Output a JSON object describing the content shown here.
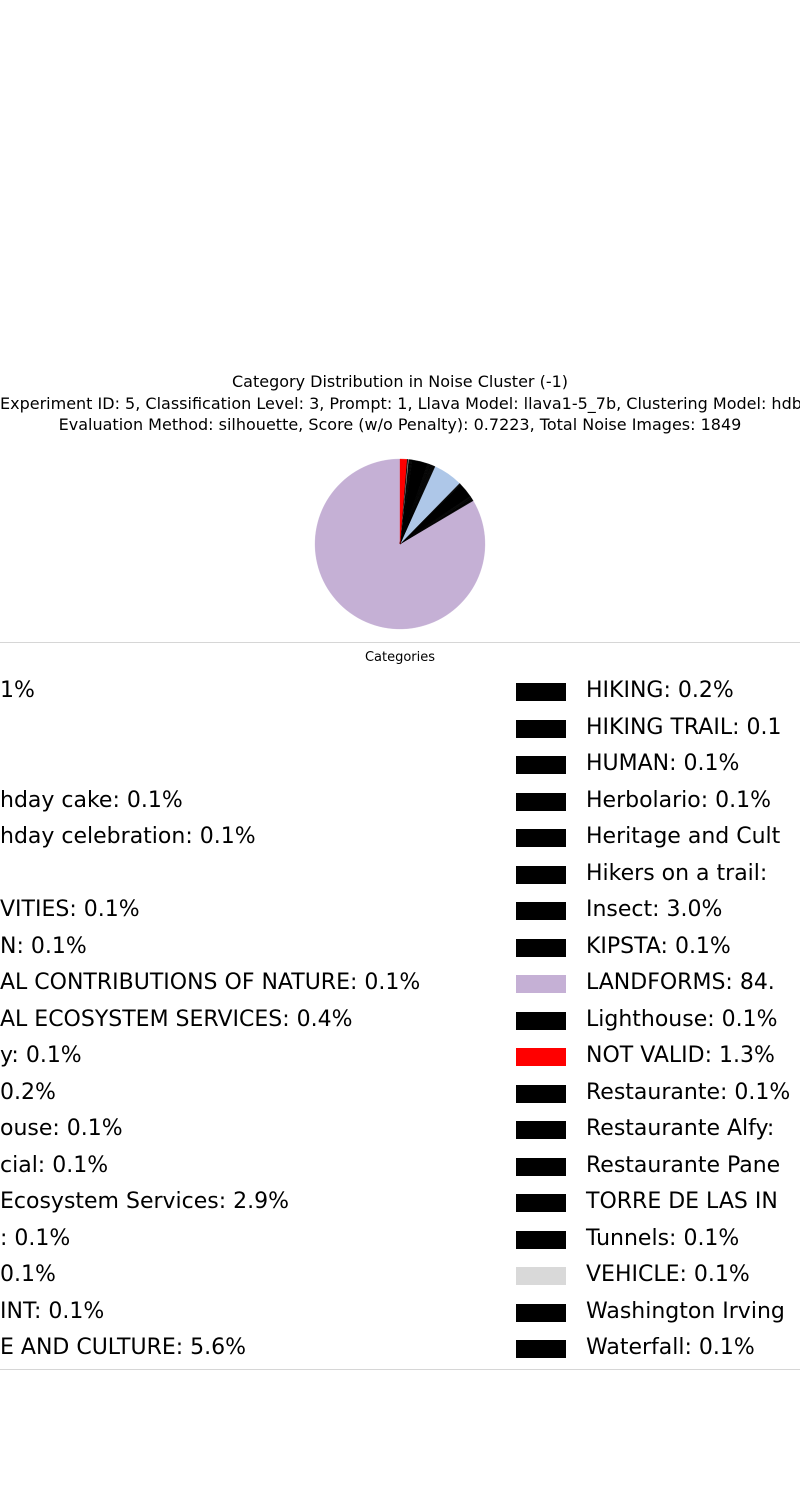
{
  "chart_data": {
    "type": "pie",
    "title_lines": [
      "Category Distribution in Noise Cluster (-1)",
      "Experiment ID: 5, Classification Level: 3, Prompt: 1, Llava Model: llava1-5_7b, Clustering Model: hdbscan",
      "Evaluation Method: silhouette, Score (w/o Penalty): 0.7223, Total Noise Images: 1849"
    ],
    "legend_title": "Categories",
    "slices": [
      {
        "label": "LANDFORMS: 84.",
        "value": 84.0,
        "color": "#c5b0d5"
      },
      {
        "label": "AL CONTRIBUTIONS OF NATURE: 0.1%",
        "value": 0.1,
        "color": "#000000"
      },
      {
        "label": "AL ECOSYSTEM SERVICES: 0.4%",
        "value": 0.4,
        "color": "#000000"
      },
      {
        "label": "y: 0.1%",
        "value": 0.1,
        "color": "#000000"
      },
      {
        "label": "0.2%",
        "value": 0.2,
        "color": "#000000"
      },
      {
        "label": "ouse: 0.1%",
        "value": 0.1,
        "color": "#000000"
      },
      {
        "label": "cial: 0.1%",
        "value": 0.1,
        "color": "#000000"
      },
      {
        "label": "Ecosystem Services: 2.9%",
        "value": 2.9,
        "color": "#000000"
      },
      {
        "label": ": 0.1%",
        "value": 0.1,
        "color": "#000000"
      },
      {
        "label": "0.1%",
        "value": 0.1,
        "color": "#000000"
      },
      {
        "label": "INT: 0.1%",
        "value": 0.1,
        "color": "#000000"
      },
      {
        "label": "E AND CULTURE: 5.6%",
        "value": 5.6,
        "color": "#aec7e8"
      },
      {
        "label": "1%",
        "value": 0.1,
        "color": "#000000"
      },
      {
        "label": "",
        "value": 0.1,
        "color": "#000000"
      },
      {
        "label": "",
        "value": 0.1,
        "color": "#000000"
      },
      {
        "label": "hday cake: 0.1%",
        "value": 0.1,
        "color": "#000000"
      },
      {
        "label": "hday celebration: 0.1%",
        "value": 0.1,
        "color": "#000000"
      },
      {
        "label": "",
        "value": 0.1,
        "color": "#000000"
      },
      {
        "label": "VITIES: 0.1%",
        "value": 0.1,
        "color": "#000000"
      },
      {
        "label": "N: 0.1%",
        "value": 0.1,
        "color": "#000000"
      },
      {
        "label": "HIKING: 0.2%",
        "value": 0.2,
        "color": "#000000"
      },
      {
        "label": "HIKING TRAIL: 0.1",
        "value": 0.1,
        "color": "#000000"
      },
      {
        "label": "HUMAN: 0.1%",
        "value": 0.1,
        "color": "#000000"
      },
      {
        "label": "Herbolario: 0.1%",
        "value": 0.1,
        "color": "#000000"
      },
      {
        "label": "Heritage and Cult",
        "value": 0.1,
        "color": "#000000"
      },
      {
        "label": "Hikers on a trail:",
        "value": 0.1,
        "color": "#000000"
      },
      {
        "label": "Insect: 3.0%",
        "value": 3.0,
        "color": "#000000"
      },
      {
        "label": "KIPSTA: 0.1%",
        "value": 0.1,
        "color": "#000000"
      },
      {
        "label": "Lighthouse: 0.1%",
        "value": 0.1,
        "color": "#000000"
      },
      {
        "label": "Restaurante: 0.1%",
        "value": 0.1,
        "color": "#000000"
      },
      {
        "label": "Restaurante Alfy:",
        "value": 0.1,
        "color": "#000000"
      },
      {
        "label": "Restaurante Pane",
        "value": 0.1,
        "color": "#000000"
      },
      {
        "label": "TORRE DE LAS IN",
        "value": 0.1,
        "color": "#000000"
      },
      {
        "label": "Tunnels: 0.1%",
        "value": 0.1,
        "color": "#000000"
      },
      {
        "label": "VEHICLE: 0.1%",
        "value": 0.1,
        "color": "#d9d9d9"
      },
      {
        "label": "Washington Irving",
        "value": 0.1,
        "color": "#000000"
      },
      {
        "label": "Waterfall: 0.1%",
        "value": 0.1,
        "color": "#000000"
      },
      {
        "label": "NOT VALID: 1.3%",
        "value": 1.3,
        "color": "#ff0000"
      }
    ],
    "legend_columns": [
      [
        {
          "label": "1%",
          "color": "#000000"
        },
        {
          "label": "",
          "color": "#000000"
        },
        {
          "label": "",
          "color": "#000000"
        },
        {
          "label": "hday cake: 0.1%",
          "color": "#000000"
        },
        {
          "label": "hday celebration: 0.1%",
          "color": "#000000"
        },
        {
          "label": "",
          "color": "#000000"
        },
        {
          "label": "VITIES: 0.1%",
          "color": "#000000"
        },
        {
          "label": "N: 0.1%",
          "color": "#000000"
        },
        {
          "label": "AL CONTRIBUTIONS OF NATURE: 0.1%",
          "color": "#000000"
        },
        {
          "label": "AL ECOSYSTEM SERVICES: 0.4%",
          "color": "#000000"
        },
        {
          "label": "y: 0.1%",
          "color": "#000000"
        },
        {
          "label": "0.2%",
          "color": "#000000"
        },
        {
          "label": "ouse: 0.1%",
          "color": "#000000"
        },
        {
          "label": "cial: 0.1%",
          "color": "#000000"
        },
        {
          "label": "Ecosystem Services: 2.9%",
          "color": "#000000"
        },
        {
          "label": ": 0.1%",
          "color": "#000000"
        },
        {
          "label": "0.1%",
          "color": "#000000"
        },
        {
          "label": "INT: 0.1%",
          "color": "#000000"
        },
        {
          "label": "E AND CULTURE: 5.6%",
          "color": "#aec7e8"
        }
      ],
      [
        {
          "label": "HIKING: 0.2%",
          "color": "#000000"
        },
        {
          "label": "HIKING TRAIL: 0.1",
          "color": "#000000"
        },
        {
          "label": "HUMAN: 0.1%",
          "color": "#000000"
        },
        {
          "label": "Herbolario: 0.1%",
          "color": "#000000"
        },
        {
          "label": "Heritage and Cult",
          "color": "#000000"
        },
        {
          "label": "Hikers on a trail:",
          "color": "#000000"
        },
        {
          "label": "Insect: 3.0%",
          "color": "#000000"
        },
        {
          "label": "KIPSTA: 0.1%",
          "color": "#000000"
        },
        {
          "label": "LANDFORMS: 84.",
          "color": "#c5b0d5"
        },
        {
          "label": "Lighthouse: 0.1%",
          "color": "#000000"
        },
        {
          "label": "NOT VALID: 1.3%",
          "color": "#ff0000"
        },
        {
          "label": "Restaurante: 0.1%",
          "color": "#000000"
        },
        {
          "label": "Restaurante Alfy:",
          "color": "#000000"
        },
        {
          "label": "Restaurante Pane",
          "color": "#000000"
        },
        {
          "label": "TORRE DE LAS IN",
          "color": "#000000"
        },
        {
          "label": "Tunnels: 0.1%",
          "color": "#000000"
        },
        {
          "label": "VEHICLE: 0.1%",
          "color": "#d9d9d9"
        },
        {
          "label": "Washington Irving",
          "color": "#000000"
        },
        {
          "label": "Waterfall: 0.1%",
          "color": "#000000"
        }
      ]
    ],
    "legend_placement": "below"
  }
}
